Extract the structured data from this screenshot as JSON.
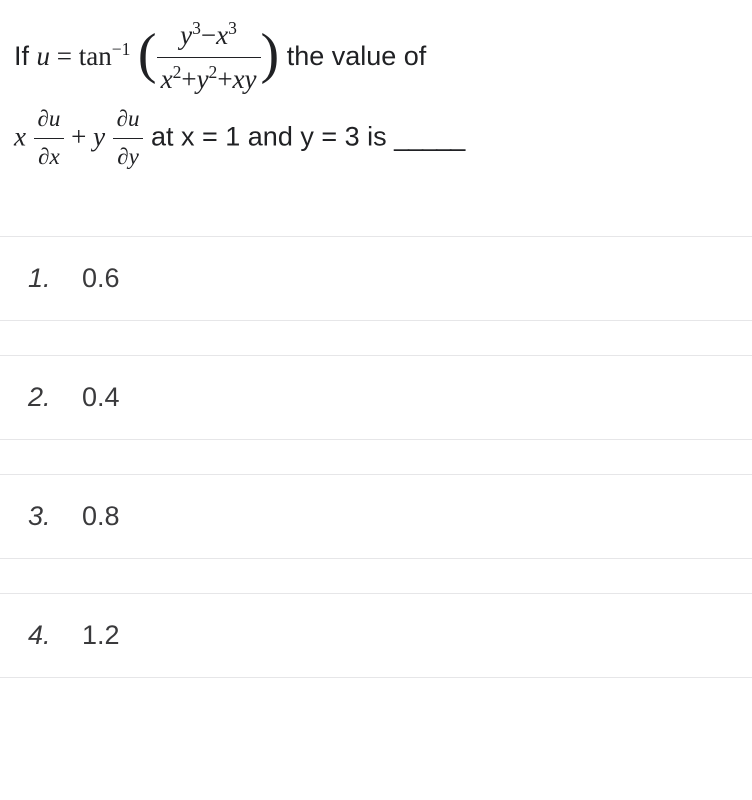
{
  "question": {
    "prefix": "If ",
    "u_eq": "u",
    "equals": " = ",
    "func": "tan",
    "exp_neg1": "−1",
    "frac1_num_a": "y",
    "frac1_num_a_exp": "3",
    "frac1_num_op": "−",
    "frac1_num_b": "x",
    "frac1_num_b_exp": "3",
    "frac1_den_a": "x",
    "frac1_den_a_exp": "2",
    "frac1_den_op1": "+",
    "frac1_den_b": "y",
    "frac1_den_b_exp": "2",
    "frac1_den_op2": "+",
    "frac1_den_c": "xy",
    "suffix1": " the value of",
    "line2_x": "x",
    "frac2a_num": "∂u",
    "frac2a_den": "∂x",
    "plus": " + ",
    "line2_y": "y",
    "frac2b_num": "∂u",
    "frac2b_den": "∂y",
    "suffix2": " at x = 1 and y = 3 is ",
    "blank": "_____"
  },
  "options": [
    {
      "num": "1.",
      "val": "0.6"
    },
    {
      "num": "2.",
      "val": "0.4"
    },
    {
      "num": "3.",
      "val": "0.8"
    },
    {
      "num": "4.",
      "val": "1.2"
    }
  ],
  "colors": {
    "text": "#202124",
    "border": "#e6e6e8",
    "option_text": "#3a3a3c",
    "background": "#ffffff"
  }
}
